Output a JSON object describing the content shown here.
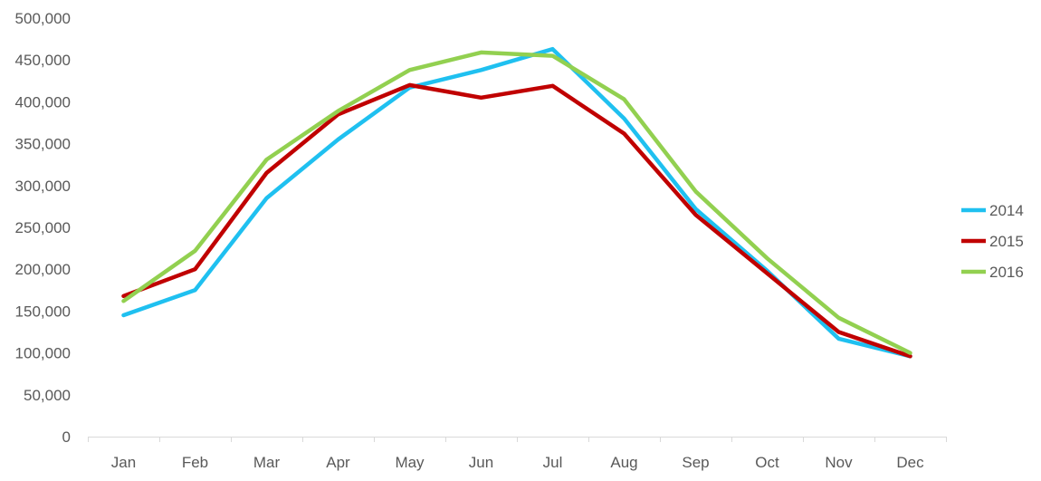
{
  "chart_data": {
    "type": "line",
    "title": "",
    "xlabel": "",
    "ylabel": "",
    "categories": [
      "Jan",
      "Feb",
      "Mar",
      "Apr",
      "May",
      "Jun",
      "Jul",
      "Aug",
      "Sep",
      "Oct",
      "Nov",
      "Dec"
    ],
    "ylim": [
      0,
      500000
    ],
    "yticks": [
      0,
      50000,
      100000,
      150000,
      200000,
      250000,
      300000,
      350000,
      400000,
      450000,
      500000
    ],
    "ytick_labels": [
      "0",
      "50,000",
      "100,000",
      "150,000",
      "200,000",
      "250,000",
      "300,000",
      "350,000",
      "400,000",
      "450,000",
      "500,000"
    ],
    "grid": false,
    "legend_position": "right",
    "series": [
      {
        "name": "2014",
        "color": "#1fc0f0",
        "values": [
          145000,
          175000,
          285000,
          355000,
          417000,
          438000,
          463000,
          380000,
          272000,
          198000,
          117000,
          96000
        ]
      },
      {
        "name": "2015",
        "color": "#c00000",
        "values": [
          168000,
          200000,
          315000,
          385000,
          420000,
          405000,
          419000,
          362000,
          265000,
          195000,
          125000,
          96000
        ]
      },
      {
        "name": "2016",
        "color": "#92d050",
        "values": [
          162000,
          222000,
          331000,
          389000,
          438000,
          459000,
          455000,
          403000,
          293000,
          213000,
          142000,
          100000
        ]
      }
    ]
  }
}
